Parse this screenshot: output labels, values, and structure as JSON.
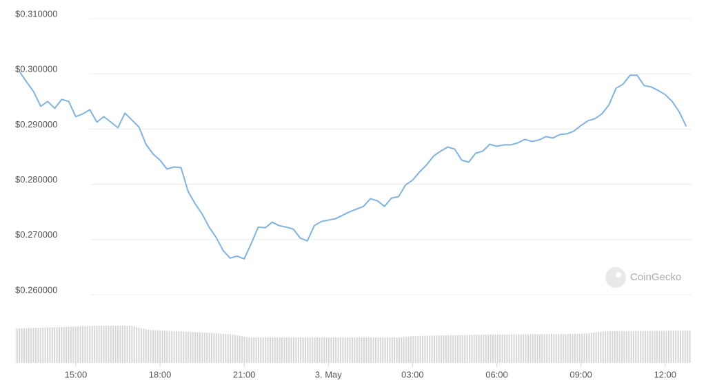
{
  "chart_data": {
    "type": "line",
    "x": [
      13.0,
      13.25,
      13.5,
      13.75,
      14.0,
      14.25,
      14.5,
      14.75,
      15.0,
      15.25,
      15.5,
      15.75,
      16.0,
      16.25,
      16.5,
      16.75,
      17.0,
      17.25,
      17.5,
      17.75,
      18.0,
      18.25,
      18.5,
      18.75,
      19.0,
      19.25,
      19.5,
      19.75,
      20.0,
      20.25,
      20.5,
      20.75,
      21.0,
      21.25,
      21.5,
      21.75,
      22.0,
      22.25,
      22.5,
      22.75,
      23.0,
      23.25,
      23.5,
      23.75,
      24.0,
      24.25,
      24.5,
      24.75,
      25.0,
      25.25,
      25.5,
      25.75,
      26.0,
      26.25,
      26.5,
      26.75,
      27.0,
      27.25,
      27.5,
      27.75,
      28.0,
      28.25,
      28.5,
      28.75,
      29.0,
      29.25,
      29.5,
      29.75,
      30.0,
      30.25,
      30.5,
      30.75,
      31.0,
      31.25,
      31.5,
      31.75,
      32.0,
      32.25,
      32.5,
      32.75,
      33.0,
      33.25,
      33.5,
      33.75,
      34.0,
      34.25,
      34.5,
      34.75,
      35.0,
      35.25,
      35.5,
      35.75,
      36.0,
      36.25,
      36.5,
      36.75
    ],
    "series": [
      {
        "color": "#7fb2e5",
        "values": [
          0.30038,
          0.2985,
          0.29675,
          0.29413,
          0.295,
          0.29375,
          0.29538,
          0.295,
          0.29225,
          0.29275,
          0.2935,
          0.29125,
          0.29225,
          0.29125,
          0.29025,
          0.29288,
          0.29163,
          0.29038,
          0.28725,
          0.2855,
          0.28438,
          0.28275,
          0.28313,
          0.283,
          0.27875,
          0.2765,
          0.27463,
          0.27225,
          0.27038,
          0.268,
          0.26663,
          0.267,
          0.2665,
          0.26925,
          0.27225,
          0.27213,
          0.27313,
          0.2725,
          0.27225,
          0.27188,
          0.27025,
          0.26975,
          0.2725,
          0.27325,
          0.2735,
          0.27375,
          0.27438,
          0.275,
          0.2755,
          0.276,
          0.27738,
          0.277,
          0.276,
          0.2775,
          0.27775,
          0.27988,
          0.28075,
          0.28225,
          0.2835,
          0.28513,
          0.286,
          0.28675,
          0.28638,
          0.28438,
          0.284,
          0.28563,
          0.286,
          0.28725,
          0.28688,
          0.28713,
          0.28713,
          0.2875,
          0.28813,
          0.28775,
          0.288,
          0.28863,
          0.28838,
          0.289,
          0.28913,
          0.28963,
          0.29063,
          0.2915,
          0.29188,
          0.29275,
          0.29438,
          0.29738,
          0.29813,
          0.29975,
          0.29975,
          0.29788,
          0.29763,
          0.297,
          0.29625,
          0.295,
          0.29313,
          0.2905
        ]
      }
    ],
    "xlim": [
      12.84,
      36.94
    ],
    "xticks": [
      {
        "value": 15,
        "label": "15:00"
      },
      {
        "value": 18,
        "label": "18:00"
      },
      {
        "value": 21,
        "label": "21:00"
      },
      {
        "value": 24,
        "label": "3. May"
      },
      {
        "value": 27,
        "label": "03:00"
      },
      {
        "value": 30,
        "label": "06:00"
      },
      {
        "value": 33,
        "label": "09:00"
      },
      {
        "value": 36,
        "label": "12:00"
      }
    ],
    "ylim": [
      0.26,
      0.31
    ],
    "yticks": [
      {
        "value": 0.31,
        "label": "$0.310000"
      },
      {
        "value": 0.3,
        "label": "$0.300000"
      },
      {
        "value": 0.29,
        "label": "$0.290000"
      },
      {
        "value": 0.28,
        "label": "$0.280000"
      },
      {
        "value": 0.27,
        "label": "$0.270000"
      },
      {
        "value": 0.26,
        "label": "$0.260000"
      }
    ],
    "grid": true,
    "watermark": "CoinGecko"
  }
}
